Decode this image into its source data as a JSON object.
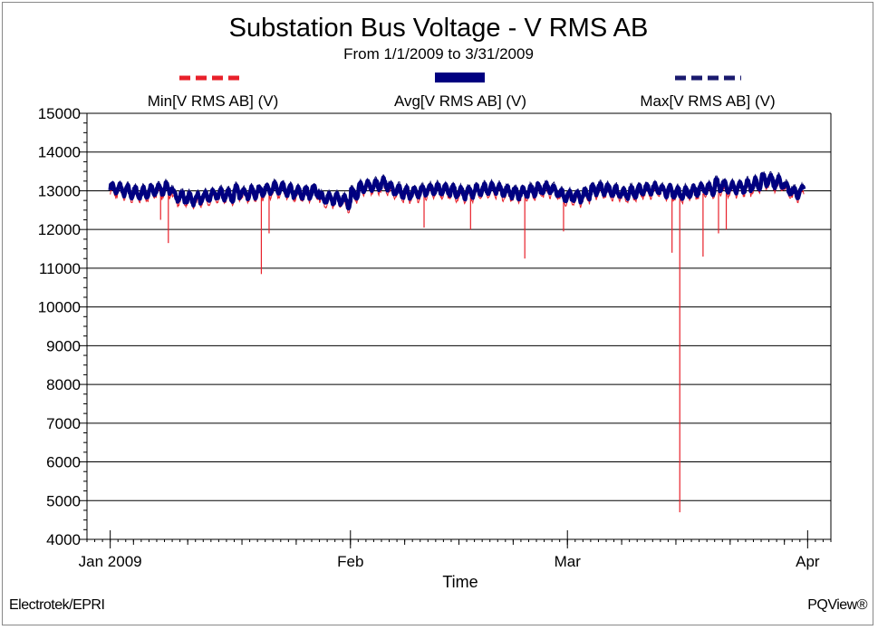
{
  "chart_data": {
    "type": "line",
    "title": "Substation Bus Voltage - V RMS AB",
    "subtitle": "From 1/1/2009 to 3/31/2009",
    "xlabel": "Time",
    "ylabel": "",
    "ylim": [
      4000,
      15000
    ],
    "yticks": [
      4000,
      5000,
      6000,
      7000,
      8000,
      9000,
      10000,
      11000,
      12000,
      13000,
      14000,
      15000
    ],
    "xlim": [
      "2008-12-29",
      "2009-04-04"
    ],
    "xticks": [
      {
        "label": "Jan 2009",
        "date": "2009-01-01"
      },
      {
        "label": "Feb",
        "date": "2009-02-01"
      },
      {
        "label": "Mar",
        "date": "2009-03-01"
      },
      {
        "label": "Apr",
        "date": "2009-04-01"
      }
    ],
    "grid": "horizontal",
    "legend_position": "top",
    "series": [
      {
        "name": "Min[V RMS AB] (V)",
        "color": "#e8202a",
        "style": "dashed",
        "typical_range": [
          12500,
          13400
        ],
        "dips": [
          {
            "date": "2009-01-07",
            "value": 12250
          },
          {
            "date": "2009-01-08",
            "value": 11650
          },
          {
            "date": "2009-01-20",
            "value": 10850
          },
          {
            "date": "2009-01-21",
            "value": 11900
          },
          {
            "date": "2009-02-10",
            "value": 12050
          },
          {
            "date": "2009-02-16",
            "value": 12000
          },
          {
            "date": "2009-02-23",
            "value": 11250
          },
          {
            "date": "2009-02-28",
            "value": 11950
          },
          {
            "date": "2009-03-14",
            "value": 11400
          },
          {
            "date": "2009-03-15",
            "value": 4700
          },
          {
            "date": "2009-03-18",
            "value": 11300
          },
          {
            "date": "2009-03-20",
            "value": 11900
          },
          {
            "date": "2009-03-21",
            "value": 12000
          }
        ]
      },
      {
        "name": "Avg[V RMS AB] (V)",
        "color": "#000080",
        "style": "solid",
        "typical_range": [
          12550,
          13400
        ]
      },
      {
        "name": "Max[V RMS AB] (V)",
        "color": "#1a1a6e",
        "style": "dashed",
        "typical_range": [
          12600,
          13500
        ]
      }
    ]
  },
  "footer": {
    "left": "Electrotek/EPRI",
    "right": "PQView®"
  }
}
